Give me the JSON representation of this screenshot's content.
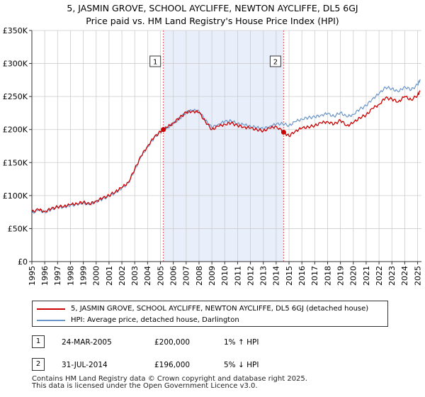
{
  "title_line1": "5, JASMIN GROVE, SCHOOL AYCLIFFE, NEWTON AYCLIFFE, DL5 6GJ",
  "title_line2": "Price paid vs. HM Land Registry's House Price Index (HPI)",
  "chart_data": {
    "type": "line",
    "x_range": [
      1995,
      2025.3
    ],
    "ylim": [
      0,
      350000
    ],
    "y_ticks": [
      {
        "value": 0,
        "label": "£0"
      },
      {
        "value": 50000,
        "label": "£50K"
      },
      {
        "value": 100000,
        "label": "£100K"
      },
      {
        "value": 150000,
        "label": "£150K"
      },
      {
        "value": 200000,
        "label": "£200K"
      },
      {
        "value": 250000,
        "label": "£250K"
      },
      {
        "value": 300000,
        "label": "£300K"
      },
      {
        "value": 350000,
        "label": "£350K"
      }
    ],
    "x_ticks": [
      "1995",
      "1996",
      "1997",
      "1998",
      "1999",
      "2000",
      "2001",
      "2002",
      "2003",
      "2004",
      "2005",
      "2006",
      "2007",
      "2008",
      "2009",
      "2010",
      "2011",
      "2012",
      "2013",
      "2014",
      "2015",
      "2016",
      "2017",
      "2018",
      "2019",
      "2020",
      "2021",
      "2022",
      "2023",
      "2024",
      "2025"
    ],
    "highlight_span": [
      2005.23,
      2014.58
    ],
    "colors": {
      "property": "#cc0000",
      "hpi": "#6a95c8",
      "span": "#e8eefa",
      "marker_line": "#dd5555"
    },
    "series": [
      {
        "name": "5, JASMIN GROVE, SCHOOL AYCLIFFE, NEWTON AYCLIFFE, DL5 6GJ (detached house)",
        "x": [
          1995,
          1995.5,
          1996,
          1996.5,
          1997,
          1997.5,
          1998,
          1998.5,
          1999,
          1999.5,
          2000,
          2000.5,
          2001,
          2001.5,
          2002,
          2002.5,
          2003,
          2003.5,
          2004,
          2004.5,
          2005,
          2005.23,
          2005.5,
          2006,
          2006.5,
          2007,
          2007.5,
          2008,
          2008.5,
          2009,
          2009.5,
          2010,
          2010.5,
          2011,
          2011.5,
          2012,
          2012.5,
          2013,
          2013.5,
          2014,
          2014.58,
          2015,
          2015.5,
          2016,
          2016.5,
          2017,
          2017.5,
          2018,
          2018.5,
          2019,
          2019.5,
          2020,
          2020.5,
          2021,
          2021.5,
          2022,
          2022.5,
          2023,
          2023.5,
          2024,
          2024.5,
          2025,
          2025.2
        ],
        "values": [
          75000,
          79000,
          76000,
          80000,
          83000,
          84000,
          86000,
          88000,
          90000,
          87000,
          92000,
          96000,
          100000,
          106000,
          112000,
          120000,
          140000,
          160000,
          175000,
          188000,
          197000,
          200000,
          203000,
          210000,
          218000,
          226000,
          228000,
          226000,
          212000,
          200000,
          205000,
          208000,
          210000,
          206000,
          204000,
          202000,
          200000,
          198000,
          202000,
          205000,
          196000,
          190000,
          198000,
          202000,
          204000,
          206000,
          210000,
          212000,
          208000,
          214000,
          206000,
          210000,
          218000,
          222000,
          232000,
          238000,
          248000,
          246000,
          242000,
          250000,
          245000,
          252000,
          258000
        ]
      },
      {
        "name": "HPI: Average price, detached house, Darlington",
        "x": [
          1995,
          1995.5,
          1996,
          1996.5,
          1997,
          1997.5,
          1998,
          1998.5,
          1999,
          1999.5,
          2000,
          2000.5,
          2001,
          2001.5,
          2002,
          2002.5,
          2003,
          2003.5,
          2004,
          2004.5,
          2005,
          2005.5,
          2006,
          2006.5,
          2007,
          2007.5,
          2008,
          2008.5,
          2009,
          2009.5,
          2010,
          2010.5,
          2011,
          2011.5,
          2012,
          2012.5,
          2013,
          2013.5,
          2014,
          2014.5,
          2015,
          2015.5,
          2016,
          2016.5,
          2017,
          2017.5,
          2018,
          2018.5,
          2019,
          2019.5,
          2020,
          2020.5,
          2021,
          2021.5,
          2022,
          2022.5,
          2023,
          2023.5,
          2024,
          2024.5,
          2025,
          2025.2
        ],
        "values": [
          74000,
          78000,
          75000,
          79000,
          82000,
          83000,
          85000,
          87000,
          89000,
          86000,
          91000,
          95000,
          99000,
          105000,
          111000,
          119000,
          139000,
          159000,
          174000,
          187000,
          197000,
          202000,
          209000,
          217000,
          226000,
          229000,
          228000,
          214000,
          203000,
          208000,
          212000,
          213000,
          209000,
          207000,
          205000,
          203000,
          201000,
          205000,
          208000,
          209000,
          206000,
          212000,
          216000,
          218000,
          219000,
          222000,
          224000,
          220000,
          226000,
          219000,
          223000,
          231000,
          236000,
          247000,
          254000,
          264000,
          262000,
          257000,
          265000,
          260000,
          268000,
          276000
        ]
      }
    ],
    "sales": [
      {
        "id": "1",
        "x": 2005.23,
        "value": 200000
      },
      {
        "id": "2",
        "x": 2014.58,
        "value": 196000
      }
    ]
  },
  "legend": {
    "property_label": "5, JASMIN GROVE, SCHOOL AYCLIFFE, NEWTON AYCLIFFE, DL5 6GJ (detached house)",
    "hpi_label": "HPI: Average price, detached house, Darlington"
  },
  "sales_table": [
    {
      "id": "1",
      "date": "24-MAR-2005",
      "price": "£200,000",
      "hpi": "1% ↑ HPI"
    },
    {
      "id": "2",
      "date": "31-JUL-2014",
      "price": "£196,000",
      "hpi": "5% ↓ HPI"
    }
  ],
  "footer": {
    "line1": "Contains HM Land Registry data © Crown copyright and database right 2025.",
    "line2": "This data is licensed under the Open Government Licence v3.0."
  }
}
